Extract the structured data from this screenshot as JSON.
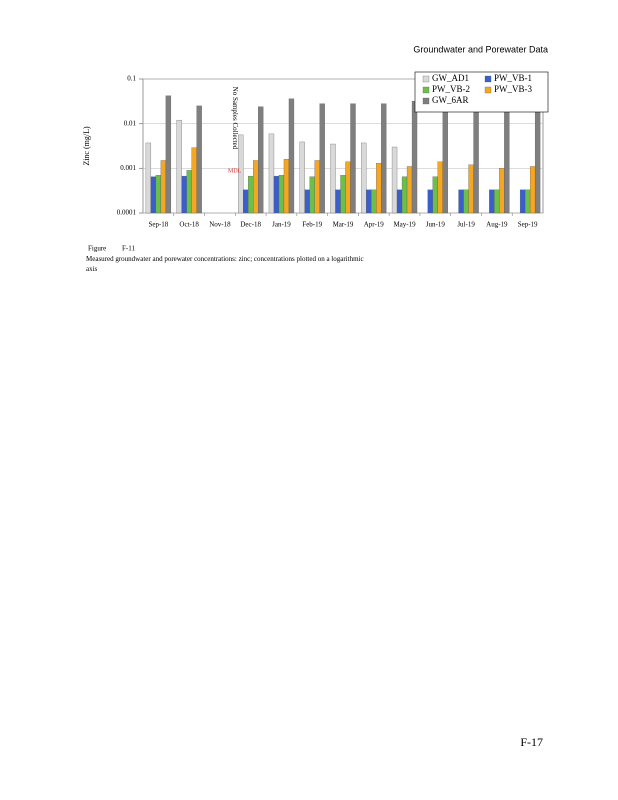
{
  "header": "Groundwater and Porewater Data",
  "chart_data": {
    "type": "bar",
    "y_label": "Zinc (mg/L)",
    "log_y": true,
    "grid": true,
    "legend_position": "top-right",
    "ylim": [
      0.0001,
      0.1
    ],
    "yticks": [
      0.0001,
      0.001,
      0.01,
      0.1
    ],
    "categories": [
      "Sep-18",
      "Oct-18",
      "Nov-18",
      "Dec-18",
      "Jan-19",
      "Feb-19",
      "Mar-19",
      "Apr-19",
      "May-19",
      "Jun-19",
      "Jul-19",
      "Aug-19",
      "Sep-19"
    ],
    "series": [
      {
        "name": "GW_AD1",
        "color": "#d9d9d9",
        "values": [
          0.0037,
          0.012,
          null,
          0.0056,
          0.0059,
          0.0039,
          0.0035,
          0.0037,
          0.003,
          null,
          null,
          null,
          null
        ]
      },
      {
        "name": "PW_VB-1",
        "color": "#3a5fcd",
        "values": [
          0.00065,
          0.00067,
          null,
          0.00033,
          0.00067,
          0.00033,
          0.00033,
          0.00033,
          0.00033,
          0.00033,
          0.00033,
          0.00033,
          0.00033
        ]
      },
      {
        "name": "PW_VB-2",
        "color": "#6cc04a",
        "values": [
          0.0007,
          0.0009,
          null,
          0.00067,
          0.0007,
          0.00065,
          0.0007,
          0.00033,
          0.00065,
          0.00065,
          0.00033,
          0.00033,
          0.00033
        ]
      },
      {
        "name": "PW_VB-3",
        "color": "#f5a623",
        "values": [
          0.0015,
          0.0029,
          null,
          0.0015,
          0.0016,
          0.0015,
          0.0014,
          0.0013,
          0.0011,
          0.0014,
          0.0012,
          0.001,
          0.0011
        ]
      },
      {
        "name": "GW_6AR",
        "color": "#7f7f7f",
        "values": [
          0.042,
          0.025,
          null,
          0.024,
          0.036,
          0.028,
          0.028,
          0.028,
          0.032,
          0.03,
          0.03,
          0.03,
          0.03
        ]
      }
    ],
    "annotations": [
      {
        "text": "No Samples Collected"
      },
      {
        "text": "MDL",
        "color": "#e03030"
      }
    ]
  },
  "caption": {
    "label": "Figure",
    "number": "F-11",
    "text": "Measured groundwater and porewater concentrations: zinc; concentrations plotted on a logarithmic axis"
  },
  "page_number": "F-17"
}
